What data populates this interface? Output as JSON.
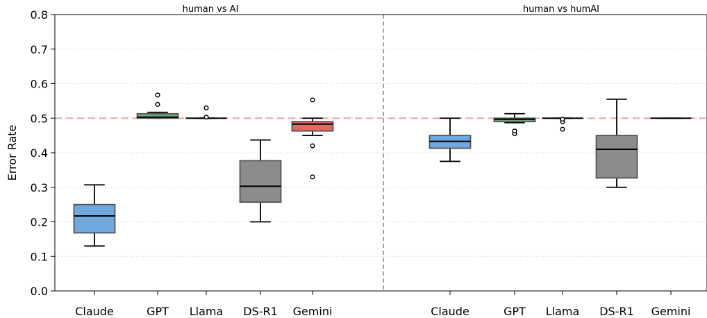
{
  "chart_data": {
    "type": "box",
    "ylabel": "Error Rate",
    "ylim": [
      0,
      0.8
    ],
    "yticks": [
      "0.0",
      "0.1",
      "0.2",
      "0.3",
      "0.4",
      "0.5",
      "0.6",
      "0.7",
      "0.8"
    ],
    "grid": "horizontal dotted",
    "reference_line": {
      "y": 0.5,
      "color": "#f4a3a3",
      "style": "dashed"
    },
    "panel_divider": {
      "style": "dashed",
      "color": "#888888"
    },
    "colors": {
      "Claude": "#6fa8dc",
      "GPT": "#6aa77b",
      "Llama": "#6aa77b",
      "DS-R1": "#8c8c8c",
      "Gemini": "#e6675f"
    },
    "panels": [
      {
        "title": "human vs AI",
        "categories": [
          "Claude",
          "GPT",
          "Llama",
          "DS-R1",
          "Gemini"
        ],
        "boxes": [
          {
            "label": "Claude",
            "whislo": 0.13,
            "q1": 0.168,
            "med": 0.217,
            "q3": 0.25,
            "whishi": 0.307,
            "fliers": []
          },
          {
            "label": "GPT",
            "whislo": 0.5,
            "q1": 0.5,
            "med": 0.503,
            "q3": 0.513,
            "whishi": 0.517,
            "fliers": [
              0.54,
              0.567
            ]
          },
          {
            "label": "Llama",
            "whislo": 0.5,
            "q1": 0.5,
            "med": 0.5,
            "q3": 0.5,
            "whishi": 0.5,
            "fliers": [
              0.503,
              0.53
            ]
          },
          {
            "label": "DS-R1",
            "whislo": 0.2,
            "q1": 0.257,
            "med": 0.303,
            "q3": 0.377,
            "whishi": 0.437,
            "fliers": []
          },
          {
            "label": "Gemini",
            "whislo": 0.45,
            "q1": 0.463,
            "med": 0.483,
            "q3": 0.49,
            "whishi": 0.5,
            "fliers": [
              0.33,
              0.42,
              0.553
            ]
          }
        ]
      },
      {
        "title": "human vs humAI",
        "categories": [
          "Claude",
          "GPT",
          "Llama",
          "DS-R1",
          "Gemini"
        ],
        "boxes": [
          {
            "label": "Claude",
            "whislo": 0.375,
            "q1": 0.413,
            "med": 0.433,
            "q3": 0.45,
            "whishi": 0.5,
            "fliers": []
          },
          {
            "label": "GPT",
            "whislo": 0.487,
            "q1": 0.49,
            "med": 0.497,
            "q3": 0.5,
            "whishi": 0.513,
            "fliers": [
              0.455,
              0.463
            ]
          },
          {
            "label": "Llama",
            "whislo": 0.5,
            "q1": 0.5,
            "med": 0.5,
            "q3": 0.5,
            "whishi": 0.5,
            "fliers": [
              0.468,
              0.49,
              0.497
            ]
          },
          {
            "label": "DS-R1",
            "whislo": 0.3,
            "q1": 0.327,
            "med": 0.41,
            "q3": 0.45,
            "whishi": 0.555,
            "fliers": []
          },
          {
            "label": "Gemini",
            "whislo": 0.5,
            "q1": 0.5,
            "med": 0.5,
            "q3": 0.5,
            "whishi": 0.5,
            "fliers": []
          }
        ]
      }
    ]
  }
}
